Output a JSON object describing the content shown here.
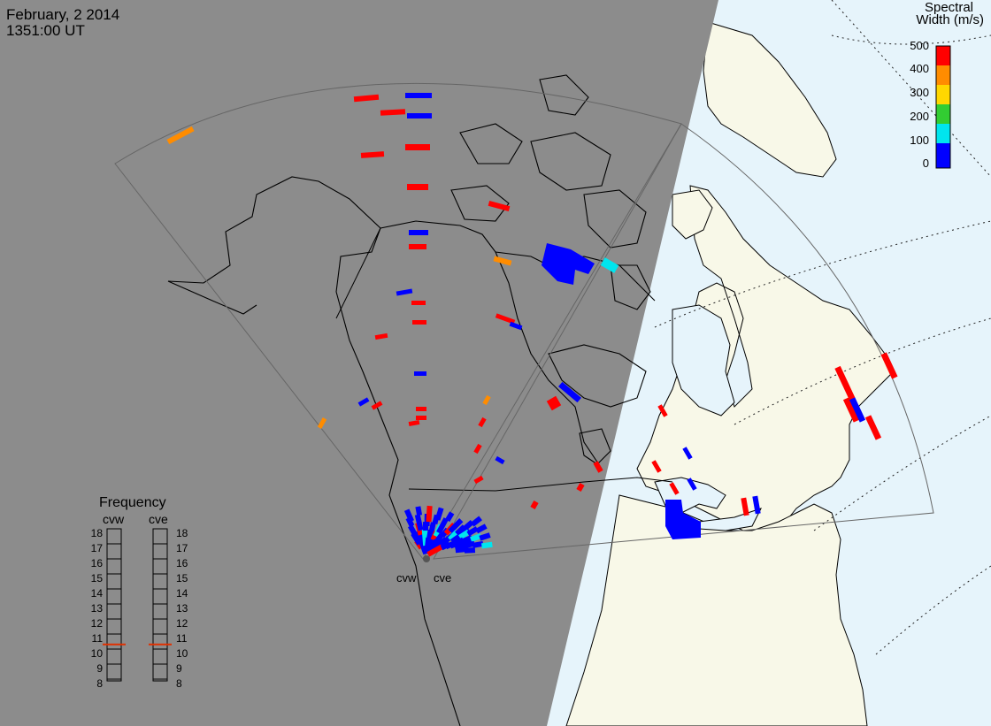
{
  "header": {
    "date": "February, 2 2014",
    "time": "1351:00 UT"
  },
  "colorbar": {
    "title_line1": "Spectral",
    "title_line2": "Width (m/s)",
    "ticks": [
      "500",
      "400",
      "300",
      "200",
      "100",
      "0"
    ],
    "colors": [
      "#ff0000",
      "#ff8c00",
      "#ffd700",
      "#32cd32",
      "#00e5ee",
      "#0000ff"
    ]
  },
  "frequency_panel": {
    "title": "Frequency",
    "radars": [
      "cvw",
      "cve"
    ],
    "ticks": [
      "18",
      "17",
      "16",
      "15",
      "14",
      "13",
      "12",
      "11",
      "10",
      "9",
      "8"
    ],
    "cvw_MHz": 10.6,
    "cve_MHz": 10.6,
    "marker_color": "#e03000"
  },
  "stations": [
    {
      "name": "cvw"
    },
    {
      "name": "cve"
    }
  ],
  "colors": {
    "night": "#8c8c8c",
    "day_land": "#f8f8e8",
    "day_ocean": "#e6f4fb",
    "fov_line": "#666666",
    "coast": "#000000"
  }
}
